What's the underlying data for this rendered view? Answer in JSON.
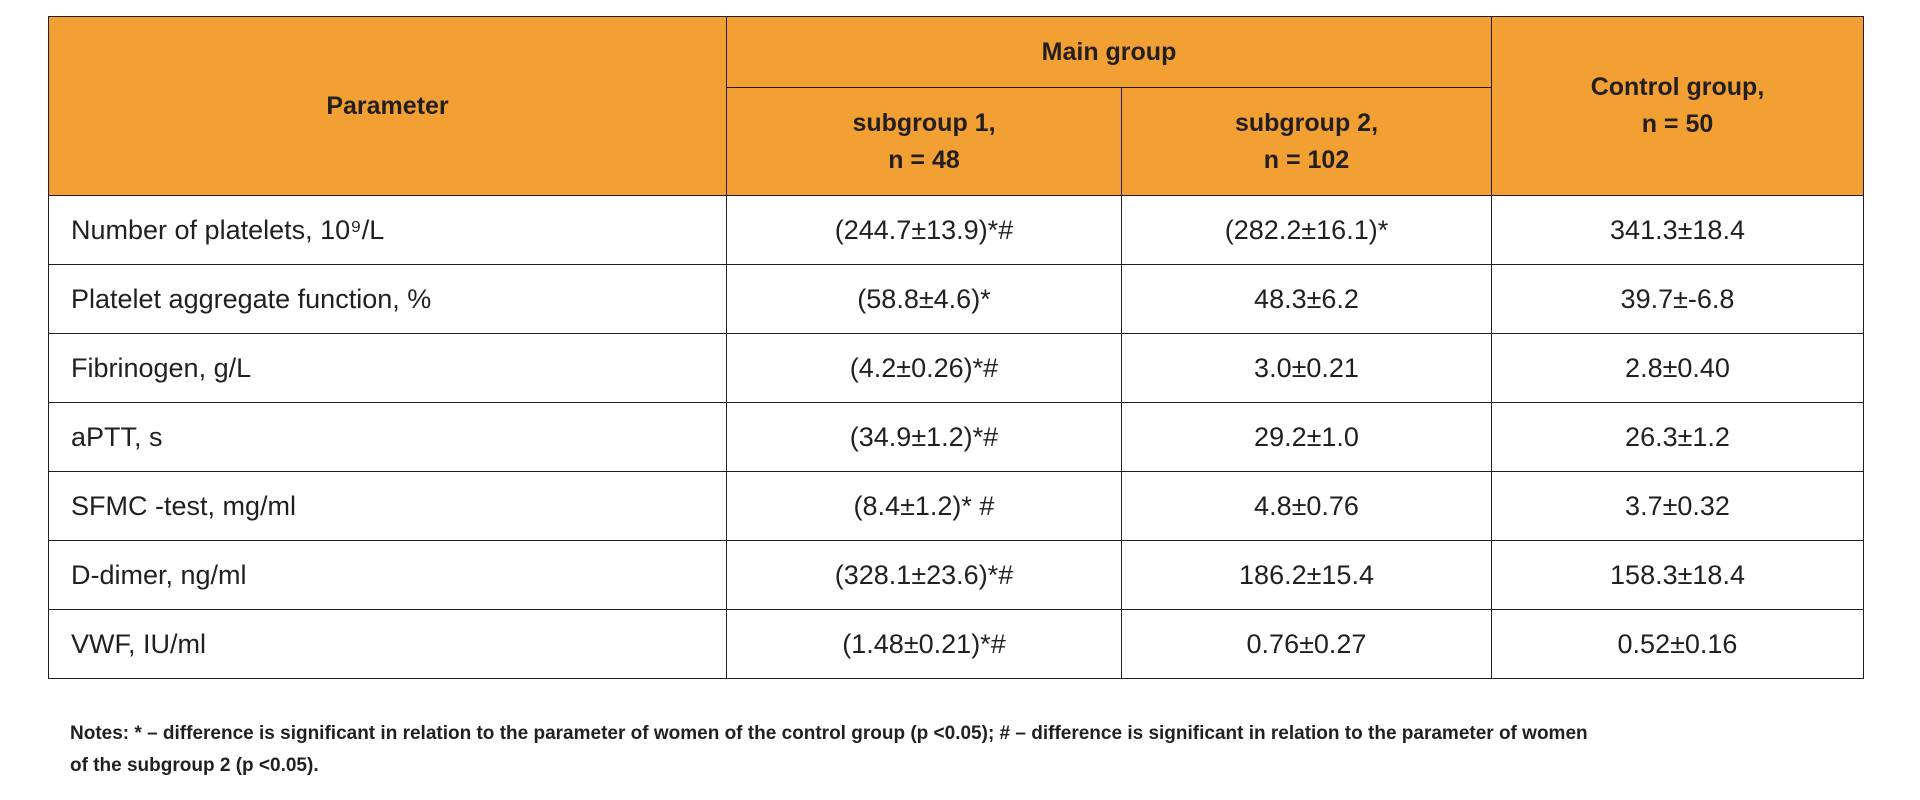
{
  "table": {
    "headers": {
      "parameter": "Parameter",
      "main_group": "Main group",
      "subgroup1": [
        "subgroup 1,",
        "n = 48"
      ],
      "subgroup2": [
        "subgroup 2,",
        "n = 102"
      ],
      "control": [
        "Control group,",
        "n = 50"
      ]
    },
    "rows": [
      {
        "parameter": "Number of platelets, 10⁹/L",
        "subgroup1": "(244.7±13.9)*#",
        "subgroup2": "(282.2±16.1)*",
        "control": "341.3±18.4"
      },
      {
        "parameter": "Platelet aggregate function, %",
        "subgroup1": "(58.8±4.6)*",
        "subgroup2": "48.3±6.2",
        "control": "39.7±-6.8"
      },
      {
        "parameter": "Fibrinogen, g/L",
        "subgroup1": "(4.2±0.26)*#",
        "subgroup2": "3.0±0.21",
        "control": "2.8±0.40"
      },
      {
        "parameter": "aPTT, s",
        "subgroup1": "(34.9±1.2)*#",
        "subgroup2": "29.2±1.0",
        "control": "26.3±1.2"
      },
      {
        "parameter": "SFMC -test, mg/ml",
        "subgroup1": "(8.4±1.2)* #",
        "subgroup2": "4.8±0.76",
        "control": "3.7±0.32"
      },
      {
        "parameter": "D-dimer, ng/ml",
        "subgroup1": "(328.1±23.6)*#",
        "subgroup2": "186.2±15.4",
        "control": "158.3±18.4"
      },
      {
        "parameter": "VWF, IU/ml",
        "subgroup1": "(1.48±0.21)*#",
        "subgroup2": "0.76±0.27",
        "control": "0.52±0.16"
      }
    ]
  },
  "notes": [
    "Notes: * – difference is significant in relation to the parameter of women of the control group (p <0.05); # – difference is significant in relation to the parameter of women",
    "of the subgroup 2 (p <0.05)."
  ],
  "colors": {
    "header_bg": "#f29f34",
    "border": "#231f20",
    "text": "#231f20"
  }
}
